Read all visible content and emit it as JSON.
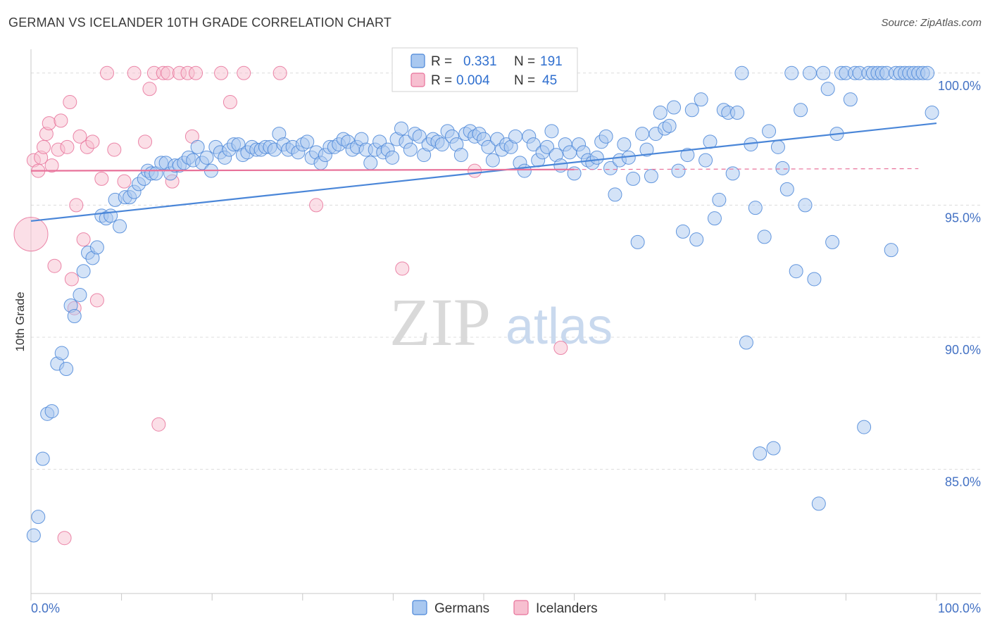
{
  "title": "GERMAN VS ICELANDER 10TH GRADE CORRELATION CHART",
  "source": "Source: ZipAtlas.com",
  "chart_data": {
    "type": "scatter",
    "ylabel": "10th Grade",
    "xlim": [
      0,
      100
    ],
    "ylim": [
      80.3,
      100.9
    ],
    "x_tick_labels": [
      "0.0%",
      "100.0%"
    ],
    "y_ticks": [
      85,
      90,
      95,
      100
    ],
    "y_tick_labels": [
      "85.0%",
      "90.0%",
      "95.0%",
      "100.0%"
    ],
    "grid": true,
    "watermark": {
      "zip": "ZIP",
      "atlas": "atlas"
    },
    "legend_stats": {
      "german": {
        "r_label": "R =",
        "r_value": "0.331",
        "n_label": "N =",
        "n_value": "191"
      },
      "icelander": {
        "r_label": "R =",
        "r_value": "0.004",
        "n_label": "N =",
        "n_value": "45"
      }
    },
    "series": [
      {
        "name": "Germans",
        "color": "#4a86d8",
        "fill": "#a9c8f0",
        "trend": {
          "x0": 0,
          "y0": 94.4,
          "x1": 100,
          "y1": 98.1
        },
        "points": [
          [
            0.3,
            82.5
          ],
          [
            0.8,
            83.2
          ],
          [
            1.3,
            85.4
          ],
          [
            1.8,
            87.1
          ],
          [
            2.3,
            87.2
          ],
          [
            2.9,
            89.0
          ],
          [
            3.4,
            89.4
          ],
          [
            3.9,
            88.8
          ],
          [
            4.4,
            91.2
          ],
          [
            4.8,
            90.8
          ],
          [
            5.4,
            91.6
          ],
          [
            5.8,
            92.5
          ],
          [
            6.3,
            93.2
          ],
          [
            6.8,
            93.0
          ],
          [
            7.3,
            93.4
          ],
          [
            7.8,
            94.6
          ],
          [
            8.3,
            94.5
          ],
          [
            8.8,
            94.6
          ],
          [
            9.3,
            95.2
          ],
          [
            9.8,
            94.2
          ],
          [
            10.4,
            95.3
          ],
          [
            10.9,
            95.3
          ],
          [
            11.4,
            95.5
          ],
          [
            11.9,
            95.8
          ],
          [
            12.5,
            96.0
          ],
          [
            12.9,
            96.3
          ],
          [
            13.3,
            96.2
          ],
          [
            13.8,
            96.2
          ],
          [
            14.4,
            96.6
          ],
          [
            14.9,
            96.6
          ],
          [
            15.4,
            96.2
          ],
          [
            15.9,
            96.5
          ],
          [
            16.4,
            96.5
          ],
          [
            16.9,
            96.6
          ],
          [
            17.4,
            96.8
          ],
          [
            17.9,
            96.7
          ],
          [
            18.4,
            97.2
          ],
          [
            18.9,
            96.6
          ],
          [
            19.4,
            96.8
          ],
          [
            19.9,
            96.3
          ],
          [
            20.4,
            97.2
          ],
          [
            20.9,
            97.0
          ],
          [
            21.4,
            96.8
          ],
          [
            21.9,
            97.1
          ],
          [
            22.4,
            97.3
          ],
          [
            22.9,
            97.3
          ],
          [
            23.4,
            96.9
          ],
          [
            23.9,
            97.0
          ],
          [
            24.4,
            97.2
          ],
          [
            24.9,
            97.1
          ],
          [
            25.4,
            97.1
          ],
          [
            25.9,
            97.2
          ],
          [
            26.4,
            97.2
          ],
          [
            26.9,
            97.1
          ],
          [
            27.4,
            97.7
          ],
          [
            27.9,
            97.3
          ],
          [
            28.4,
            97.1
          ],
          [
            28.9,
            97.2
          ],
          [
            29.5,
            97.0
          ],
          [
            30.0,
            97.3
          ],
          [
            30.5,
            97.4
          ],
          [
            31.0,
            96.8
          ],
          [
            31.5,
            97.0
          ],
          [
            32.0,
            96.6
          ],
          [
            32.5,
            96.9
          ],
          [
            33.0,
            97.2
          ],
          [
            33.5,
            97.2
          ],
          [
            34.0,
            97.3
          ],
          [
            34.5,
            97.5
          ],
          [
            35.0,
            97.4
          ],
          [
            35.5,
            97.1
          ],
          [
            36.0,
            97.2
          ],
          [
            36.5,
            97.5
          ],
          [
            37.0,
            97.1
          ],
          [
            37.5,
            96.6
          ],
          [
            38.0,
            97.1
          ],
          [
            38.5,
            97.4
          ],
          [
            38.9,
            97.0
          ],
          [
            39.4,
            97.1
          ],
          [
            39.9,
            96.8
          ],
          [
            40.4,
            97.5
          ],
          [
            40.9,
            97.9
          ],
          [
            41.4,
            97.4
          ],
          [
            41.9,
            97.1
          ],
          [
            42.4,
            97.7
          ],
          [
            42.9,
            97.6
          ],
          [
            43.4,
            96.9
          ],
          [
            43.9,
            97.3
          ],
          [
            44.4,
            97.5
          ],
          [
            44.9,
            97.4
          ],
          [
            45.4,
            97.3
          ],
          [
            46.0,
            97.8
          ],
          [
            46.5,
            97.6
          ],
          [
            47.0,
            97.3
          ],
          [
            47.5,
            96.9
          ],
          [
            48.0,
            97.7
          ],
          [
            48.5,
            97.8
          ],
          [
            49.0,
            97.6
          ],
          [
            49.5,
            97.7
          ],
          [
            50.0,
            97.5
          ],
          [
            50.5,
            97.2
          ],
          [
            51.0,
            96.7
          ],
          [
            51.5,
            97.5
          ],
          [
            52.0,
            97.1
          ],
          [
            52.5,
            97.3
          ],
          [
            53.0,
            97.2
          ],
          [
            53.5,
            97.6
          ],
          [
            54.0,
            96.6
          ],
          [
            54.5,
            96.3
          ],
          [
            55.0,
            97.6
          ],
          [
            55.5,
            97.3
          ],
          [
            56.0,
            96.7
          ],
          [
            56.5,
            97.0
          ],
          [
            57.0,
            97.2
          ],
          [
            57.5,
            97.8
          ],
          [
            58.0,
            96.9
          ],
          [
            58.5,
            96.5
          ],
          [
            59.0,
            97.3
          ],
          [
            59.5,
            97.0
          ],
          [
            60.0,
            96.2
          ],
          [
            60.5,
            97.3
          ],
          [
            61.0,
            97.0
          ],
          [
            61.5,
            96.7
          ],
          [
            62.0,
            96.6
          ],
          [
            62.5,
            96.8
          ],
          [
            63.0,
            97.4
          ],
          [
            63.5,
            97.6
          ],
          [
            64.0,
            96.4
          ],
          [
            64.5,
            95.4
          ],
          [
            65.0,
            96.7
          ],
          [
            65.5,
            97.3
          ],
          [
            66.0,
            96.8
          ],
          [
            66.5,
            96.0
          ],
          [
            67.0,
            93.6
          ],
          [
            67.5,
            97.7
          ],
          [
            68.0,
            97.1
          ],
          [
            68.5,
            96.1
          ],
          [
            69.0,
            97.7
          ],
          [
            69.5,
            98.5
          ],
          [
            70.0,
            97.9
          ],
          [
            70.5,
            98.0
          ],
          [
            71.0,
            98.7
          ],
          [
            71.5,
            96.3
          ],
          [
            72.0,
            94.0
          ],
          [
            72.5,
            96.9
          ],
          [
            73.0,
            98.6
          ],
          [
            73.5,
            93.7
          ],
          [
            74.0,
            99.0
          ],
          [
            74.5,
            96.7
          ],
          [
            75.0,
            97.4
          ],
          [
            75.5,
            94.5
          ],
          [
            76.0,
            95.2
          ],
          [
            76.5,
            98.6
          ],
          [
            77.0,
            98.5
          ],
          [
            77.5,
            96.2
          ],
          [
            78.0,
            98.5
          ],
          [
            78.5,
            100.0
          ],
          [
            79.0,
            89.8
          ],
          [
            79.5,
            97.3
          ],
          [
            80.0,
            94.9
          ],
          [
            80.5,
            85.6
          ],
          [
            81.0,
            93.8
          ],
          [
            81.5,
            97.8
          ],
          [
            82.0,
            85.8
          ],
          [
            82.5,
            97.2
          ],
          [
            83.0,
            96.4
          ],
          [
            83.5,
            95.6
          ],
          [
            84.0,
            100.0
          ],
          [
            84.5,
            92.5
          ],
          [
            85.0,
            98.6
          ],
          [
            85.5,
            95.0
          ],
          [
            86.0,
            100.0
          ],
          [
            86.5,
            92.2
          ],
          [
            87.0,
            83.7
          ],
          [
            87.5,
            100.0
          ],
          [
            88.0,
            99.4
          ],
          [
            88.5,
            93.6
          ],
          [
            89.0,
            97.7
          ],
          [
            89.5,
            100.0
          ],
          [
            90.0,
            100.0
          ],
          [
            90.5,
            99.0
          ],
          [
            91.0,
            100.0
          ],
          [
            91.5,
            100.0
          ],
          [
            92.0,
            86.6
          ],
          [
            92.5,
            100.0
          ],
          [
            93.0,
            100.0
          ],
          [
            93.5,
            100.0
          ],
          [
            94.0,
            100.0
          ],
          [
            94.5,
            100.0
          ],
          [
            95.0,
            93.3
          ],
          [
            95.5,
            100.0
          ],
          [
            96.0,
            100.0
          ],
          [
            96.5,
            100.0
          ],
          [
            97.0,
            100.0
          ],
          [
            97.5,
            100.0
          ],
          [
            98.0,
            100.0
          ],
          [
            98.5,
            100.0
          ],
          [
            99.0,
            100.0
          ],
          [
            99.5,
            98.5
          ]
        ]
      },
      {
        "name": "Icelanders",
        "color": "#e8729a",
        "fill": "#f7bfd0",
        "trend": {
          "x0": 0,
          "y0": 96.3,
          "x1": 60,
          "y1": 96.35,
          "dash_to": 98
        },
        "points": [
          [
            0.3,
            96.7
          ],
          [
            0.8,
            96.3
          ],
          [
            1.1,
            96.8
          ],
          [
            1.4,
            97.2
          ],
          [
            1.7,
            97.7
          ],
          [
            2.0,
            98.1
          ],
          [
            2.3,
            96.5
          ],
          [
            2.6,
            92.7
          ],
          [
            3.0,
            97.1
          ],
          [
            3.3,
            98.2
          ],
          [
            3.7,
            82.4
          ],
          [
            4.0,
            97.2
          ],
          [
            4.3,
            98.9
          ],
          [
            4.5,
            92.2
          ],
          [
            4.8,
            91.1
          ],
          [
            5.0,
            95.0
          ],
          [
            5.4,
            97.6
          ],
          [
            5.8,
            93.7
          ],
          [
            6.2,
            97.2
          ],
          [
            6.8,
            97.4
          ],
          [
            7.3,
            91.4
          ],
          [
            7.8,
            96.0
          ],
          [
            8.4,
            100.0
          ],
          [
            9.2,
            97.1
          ],
          [
            10.3,
            95.9
          ],
          [
            11.4,
            100.0
          ],
          [
            12.6,
            97.4
          ],
          [
            13.1,
            99.4
          ],
          [
            13.6,
            100.0
          ],
          [
            14.1,
            86.7
          ],
          [
            14.6,
            100.0
          ],
          [
            15.1,
            100.0
          ],
          [
            15.6,
            95.9
          ],
          [
            16.4,
            100.0
          ],
          [
            17.3,
            100.0
          ],
          [
            17.8,
            97.6
          ],
          [
            18.2,
            100.0
          ],
          [
            21.0,
            100.0
          ],
          [
            22.0,
            98.9
          ],
          [
            23.5,
            100.0
          ],
          [
            27.5,
            100.0
          ],
          [
            31.5,
            95.0
          ],
          [
            41.0,
            92.6
          ],
          [
            49.0,
            96.3
          ],
          [
            58.5,
            89.6
          ],
          [
            0.0,
            93.9,
            "large"
          ]
        ]
      }
    ]
  }
}
